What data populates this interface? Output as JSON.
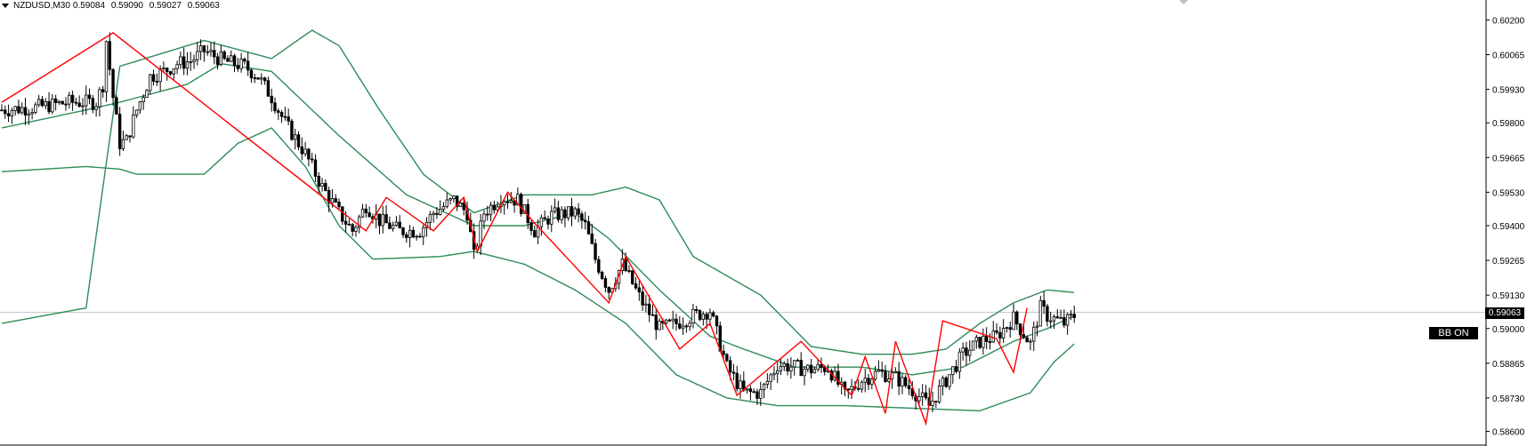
{
  "header": {
    "symbol": "NZDUSD,M30",
    "open": "0.59084",
    "high": "0.59090",
    "low": "0.59027",
    "close": "0.59063"
  },
  "current_price": "0.59063",
  "bb_toggle_label": "BB ON",
  "colors": {
    "bollinger": "#2e8b57",
    "zigzag": "#ff0000",
    "bull_candle_fill": "#ffffff",
    "bear_candle_fill": "#000000",
    "price_line": "#c8c8c8"
  },
  "chart_data": {
    "type": "candlestick",
    "symbol": "NZDUSD",
    "timeframe": "M30",
    "ylim": [
      0.5855,
      0.6025
    ],
    "y_ticks": [
      "0.60200",
      "0.60065",
      "0.59930",
      "0.59800",
      "0.59665",
      "0.59530",
      "0.59400",
      "0.59265",
      "0.59130",
      "0.59000",
      "0.58865",
      "0.58730",
      "0.58600"
    ],
    "close_anchors": [
      [
        0,
        0.5985
      ],
      [
        10,
        0.5986
      ],
      [
        20,
        0.5988
      ],
      [
        28,
        0.5988
      ],
      [
        30,
        0.5995
      ],
      [
        31,
        0.6012
      ],
      [
        33,
        0.599
      ],
      [
        35,
        0.5972
      ],
      [
        37,
        0.5973
      ],
      [
        40,
        0.5985
      ],
      [
        44,
        0.5998
      ],
      [
        48,
        0.6
      ],
      [
        52,
        0.6003
      ],
      [
        56,
        0.6004
      ],
      [
        60,
        0.6008
      ],
      [
        66,
        0.6004
      ],
      [
        72,
        0.6002
      ],
      [
        76,
        0.5998
      ],
      [
        80,
        0.599
      ],
      [
        84,
        0.598
      ],
      [
        90,
        0.5968
      ],
      [
        95,
        0.5955
      ],
      [
        100,
        0.5945
      ],
      [
        104,
        0.5938
      ],
      [
        108,
        0.5948
      ],
      [
        112,
        0.5942
      ],
      [
        118,
        0.5938
      ],
      [
        124,
        0.5938
      ],
      [
        128,
        0.5945
      ],
      [
        134,
        0.595
      ],
      [
        138,
        0.5945
      ],
      [
        140,
        0.5928
      ],
      [
        143,
        0.5945
      ],
      [
        148,
        0.5951
      ],
      [
        153,
        0.595
      ],
      [
        158,
        0.5938
      ],
      [
        163,
        0.5944
      ],
      [
        170,
        0.5945
      ],
      [
        173,
        0.594
      ],
      [
        176,
        0.5927
      ],
      [
        180,
        0.5915
      ],
      [
        184,
        0.5925
      ],
      [
        190,
        0.591
      ],
      [
        195,
        0.59
      ],
      [
        200,
        0.5902
      ],
      [
        205,
        0.5905
      ],
      [
        210,
        0.5907
      ],
      [
        215,
        0.5885
      ],
      [
        220,
        0.5875
      ],
      [
        225,
        0.5875
      ],
      [
        230,
        0.5886
      ],
      [
        235,
        0.5885
      ],
      [
        240,
        0.5884
      ],
      [
        245,
        0.5885
      ],
      [
        250,
        0.5874
      ],
      [
        255,
        0.588
      ],
      [
        260,
        0.5883
      ],
      [
        265,
        0.5881
      ],
      [
        270,
        0.5876
      ],
      [
        275,
        0.587
      ],
      [
        280,
        0.588
      ],
      [
        285,
        0.589
      ],
      [
        290,
        0.5895
      ],
      [
        295,
        0.5897
      ],
      [
        300,
        0.5904
      ],
      [
        305,
        0.5894
      ],
      [
        308,
        0.5908
      ],
      [
        310,
        0.5905
      ],
      [
        315,
        0.5902
      ],
      [
        318,
        0.5905
      ]
    ],
    "bollinger_upper": [
      [
        0,
        0.5902
      ],
      [
        25,
        0.5908
      ],
      [
        35,
        0.6002
      ],
      [
        60,
        0.6012
      ],
      [
        80,
        0.6005
      ],
      [
        92,
        0.6016
      ],
      [
        100,
        0.601
      ],
      [
        112,
        0.5985
      ],
      [
        125,
        0.596
      ],
      [
        140,
        0.5945
      ],
      [
        155,
        0.5952
      ],
      [
        175,
        0.5952
      ],
      [
        185,
        0.5955
      ],
      [
        195,
        0.595
      ],
      [
        205,
        0.5928
      ],
      [
        225,
        0.5913
      ],
      [
        240,
        0.5893
      ],
      [
        255,
        0.589
      ],
      [
        270,
        0.589
      ],
      [
        280,
        0.5892
      ],
      [
        290,
        0.5902
      ],
      [
        300,
        0.591
      ],
      [
        310,
        0.5915
      ],
      [
        318,
        0.5914
      ]
    ],
    "bollinger_middle": [
      [
        0,
        0.5978
      ],
      [
        25,
        0.5985
      ],
      [
        35,
        0.5988
      ],
      [
        55,
        0.5995
      ],
      [
        65,
        0.6003
      ],
      [
        80,
        0.6
      ],
      [
        100,
        0.5975
      ],
      [
        120,
        0.5952
      ],
      [
        140,
        0.594
      ],
      [
        155,
        0.594
      ],
      [
        170,
        0.5945
      ],
      [
        180,
        0.5935
      ],
      [
        195,
        0.5915
      ],
      [
        210,
        0.5897
      ],
      [
        220,
        0.5892
      ],
      [
        235,
        0.5885
      ],
      [
        255,
        0.5885
      ],
      [
        270,
        0.5882
      ],
      [
        285,
        0.5885
      ],
      [
        300,
        0.5895
      ],
      [
        310,
        0.59
      ],
      [
        318,
        0.5905
      ]
    ],
    "bollinger_lower": [
      [
        0,
        0.5961
      ],
      [
        25,
        0.5963
      ],
      [
        35,
        0.5962
      ],
      [
        40,
        0.596
      ],
      [
        60,
        0.596
      ],
      [
        70,
        0.5972
      ],
      [
        80,
        0.5978
      ],
      [
        90,
        0.5963
      ],
      [
        100,
        0.594
      ],
      [
        110,
        0.5927
      ],
      [
        130,
        0.5928
      ],
      [
        140,
        0.593
      ],
      [
        155,
        0.5925
      ],
      [
        170,
        0.5915
      ],
      [
        185,
        0.5902
      ],
      [
        200,
        0.5882
      ],
      [
        215,
        0.5873
      ],
      [
        230,
        0.587
      ],
      [
        250,
        0.587
      ],
      [
        270,
        0.5869
      ],
      [
        290,
        0.5868
      ],
      [
        305,
        0.5875
      ],
      [
        312,
        0.5887
      ],
      [
        318,
        0.5894
      ]
    ],
    "zigzag": [
      [
        0,
        0.5988
      ],
      [
        33,
        0.6015
      ],
      [
        108,
        0.5938
      ],
      [
        114,
        0.5951
      ],
      [
        128,
        0.5938
      ],
      [
        137,
        0.5951
      ],
      [
        141,
        0.593
      ],
      [
        150,
        0.5953
      ],
      [
        158,
        0.5941
      ],
      [
        180,
        0.591
      ],
      [
        185,
        0.5928
      ],
      [
        201,
        0.5892
      ],
      [
        210,
        0.5902
      ],
      [
        218,
        0.5874
      ],
      [
        237,
        0.5895
      ],
      [
        252,
        0.5874
      ],
      [
        256,
        0.5889
      ],
      [
        262,
        0.5867
      ],
      [
        265,
        0.5895
      ],
      [
        274,
        0.5863
      ],
      [
        279,
        0.5903
      ],
      [
        295,
        0.5896
      ],
      [
        300,
        0.5883
      ],
      [
        304,
        0.5908
      ]
    ]
  }
}
